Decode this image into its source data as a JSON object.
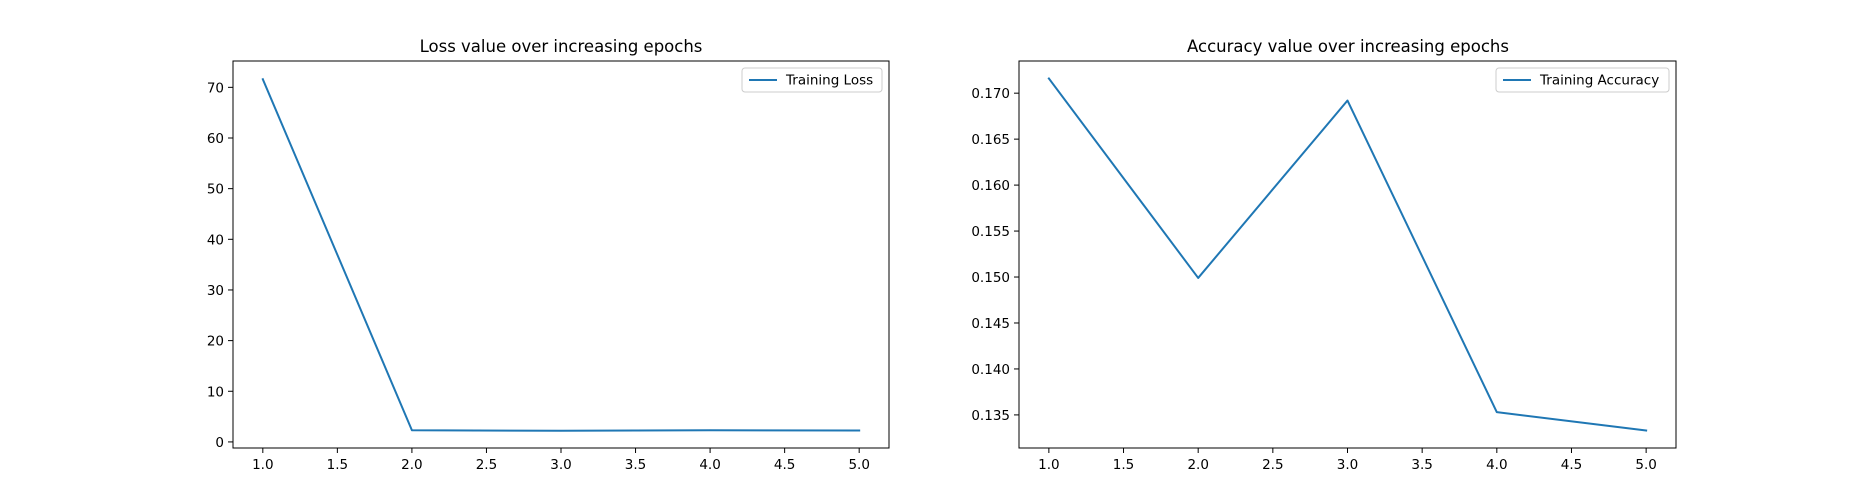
{
  "chart_data": [
    {
      "type": "line",
      "title": "Loss value over increasing epochs",
      "xlabel": "",
      "ylabel": "",
      "xlim": [
        0.8,
        5.2
      ],
      "ylim": [
        -1.2,
        75.2
      ],
      "xticks": [
        1.0,
        1.5,
        2.0,
        2.5,
        3.0,
        3.5,
        4.0,
        4.5,
        5.0
      ],
      "xtick_labels": [
        "1.0",
        "1.5",
        "2.0",
        "2.5",
        "3.0",
        "3.5",
        "4.0",
        "4.5",
        "5.0"
      ],
      "yticks": [
        0,
        10,
        20,
        30,
        40,
        50,
        60,
        70
      ],
      "ytick_labels": [
        "0",
        "10",
        "20",
        "30",
        "40",
        "50",
        "60",
        "70"
      ],
      "legend_position": "top-right",
      "grid": false,
      "series": [
        {
          "name": "Training Loss",
          "color": "#1f77b4",
          "x": [
            1,
            2,
            3,
            4,
            5
          ],
          "y": [
            71.6,
            2.3,
            2.2,
            2.3,
            2.25
          ]
        }
      ]
    },
    {
      "type": "line",
      "title": "Accuracy value over increasing epochs",
      "xlabel": "",
      "ylabel": "",
      "xlim": [
        0.8,
        5.2
      ],
      "ylim": [
        0.1314,
        0.1735
      ],
      "xticks": [
        1.0,
        1.5,
        2.0,
        2.5,
        3.0,
        3.5,
        4.0,
        4.5,
        5.0
      ],
      "xtick_labels": [
        "1.0",
        "1.5",
        "2.0",
        "2.5",
        "3.0",
        "3.5",
        "4.0",
        "4.5",
        "5.0"
      ],
      "yticks": [
        0.135,
        0.14,
        0.145,
        0.15,
        0.155,
        0.16,
        0.165,
        0.17
      ],
      "ytick_labels": [
        "0.135",
        "0.140",
        "0.145",
        "0.150",
        "0.155",
        "0.160",
        "0.165",
        "0.170"
      ],
      "legend_position": "top-right",
      "grid": false,
      "series": [
        {
          "name": "Training Accuracy",
          "color": "#1f77b4",
          "x": [
            1,
            2,
            3,
            4,
            5
          ],
          "y": [
            0.1716,
            0.1499,
            0.1692,
            0.1353,
            0.1333
          ]
        }
      ]
    }
  ]
}
